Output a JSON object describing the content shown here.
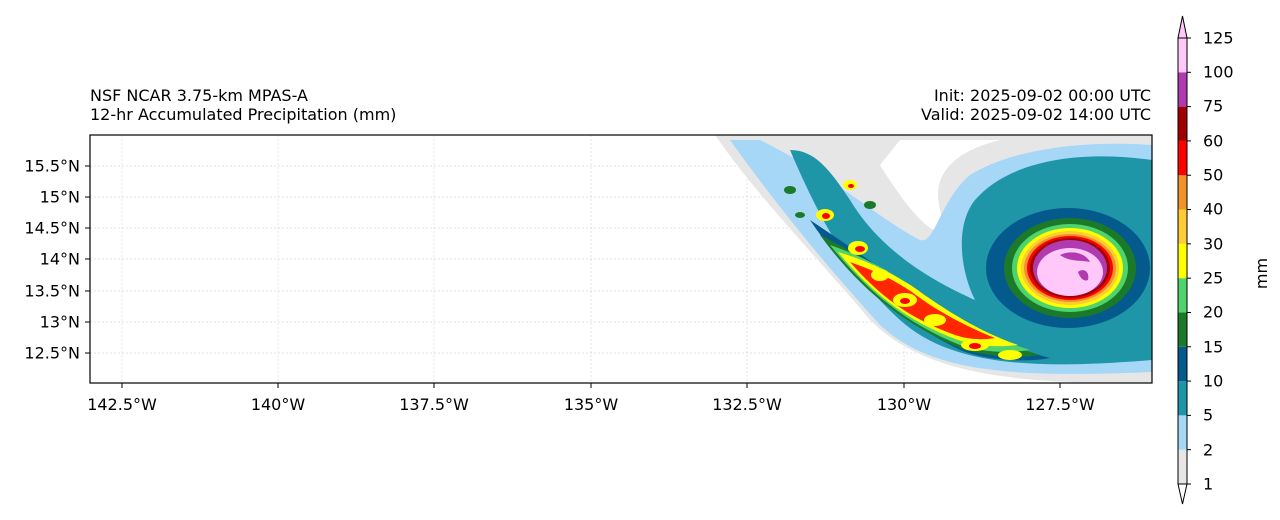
{
  "title": {
    "left_line1": "NSF NCAR 3.75-km MPAS-A",
    "left_line2": "12-hr Accumulated Precipitation (mm)",
    "right_line1": "Init: 2025-09-02 00:00 UTC",
    "right_line2": "Valid: 2025-09-02 14:00 UTC"
  },
  "axes": {
    "lat_labels": [
      "15.5°N",
      "15°N",
      "14.5°N",
      "14°N",
      "13.5°N",
      "13°N",
      "12.5°N"
    ],
    "lon_labels": [
      "142.5°W",
      "140°W",
      "137.5°W",
      "135°W",
      "132.5°W",
      "130°W",
      "127.5°W"
    ],
    "lat_range": [
      12.0,
      16.0
    ],
    "lon_range": [
      -142.5,
      -126.0
    ],
    "grid": true
  },
  "colorbar": {
    "label": "mm",
    "levels": [
      "1",
      "2",
      "5",
      "10",
      "15",
      "20",
      "25",
      "30",
      "40",
      "50",
      "60",
      "75",
      "100",
      "125"
    ],
    "colors": [
      "#e6e6e6",
      "#a6d7f7",
      "#1e96a8",
      "#045a8d",
      "#1b7a2a",
      "#4fd46b",
      "#ffff00",
      "#ffcc33",
      "#f09428",
      "#ff0000",
      "#a00000",
      "#b03ab0",
      "#ffc8f8"
    ]
  },
  "storm": {
    "center_lon": -127.2,
    "center_lat": 13.9
  }
}
